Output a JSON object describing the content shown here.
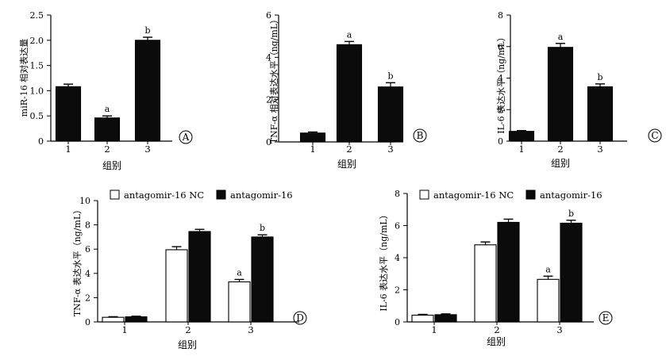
{
  "colors": {
    "bar_dark": "#0b0b0b",
    "bar_light": "#ffffff",
    "axis": "#000000"
  },
  "chart_data": [
    {
      "panel": "A",
      "type": "bar",
      "categories": [
        "1",
        "2",
        "3"
      ],
      "xlabel": "组别",
      "ylabel": "miR-16 相对表达量",
      "ylim": [
        0,
        2.5
      ],
      "yticks": [
        "0",
        "0.5",
        "1.0",
        "1.5",
        "2.0",
        "2.5"
      ],
      "series": [
        {
          "values": [
            1.08,
            0.46,
            2.0
          ],
          "errors": [
            0.05,
            0.04,
            0.06
          ],
          "labels": [
            "",
            "a",
            "b"
          ],
          "fill": "dark"
        }
      ]
    },
    {
      "panel": "B",
      "type": "bar",
      "categories": [
        "1",
        "2",
        "3"
      ],
      "xlabel": "组别",
      "ylabel": "TNF-α 相对表达水平（ng/mL）",
      "ylim": [
        0,
        6
      ],
      "yticks": [
        "0",
        "2",
        "4",
        "6"
      ],
      "series": [
        {
          "values": [
            0.42,
            4.6,
            2.6
          ],
          "errors": [
            0.05,
            0.15,
            0.2
          ],
          "labels": [
            "",
            "a",
            "b"
          ],
          "fill": "dark"
        }
      ]
    },
    {
      "panel": "C",
      "type": "bar",
      "categories": [
        "1",
        "2",
        "3"
      ],
      "xlabel": "组别",
      "ylabel": "IL-6 表达水平（ng/mL）",
      "ylim": [
        0,
        8
      ],
      "yticks": [
        "0",
        "2",
        "4",
        "6",
        "8"
      ],
      "series": [
        {
          "values": [
            0.62,
            5.95,
            3.45
          ],
          "errors": [
            0.05,
            0.25,
            0.18
          ],
          "labels": [
            "",
            "a",
            "b"
          ],
          "fill": "dark"
        }
      ]
    },
    {
      "panel": "D",
      "type": "bar",
      "categories": [
        "1",
        "2",
        "3"
      ],
      "xlabel": "组别",
      "ylabel": "TNF-α 表达水平（ng/mL）",
      "ylim": [
        0,
        10
      ],
      "yticks": [
        "0",
        "2",
        "4",
        "6",
        "8",
        "10"
      ],
      "series": [
        {
          "name": "antagomir-16 NC",
          "values": [
            0.38,
            5.95,
            3.3
          ],
          "errors": [
            0.05,
            0.25,
            0.2
          ],
          "labels": [
            "",
            "",
            "a"
          ],
          "fill": "light"
        },
        {
          "name": "antagomir-16",
          "values": [
            0.42,
            7.45,
            7.0
          ],
          "errors": [
            0.05,
            0.18,
            0.18
          ],
          "labels": [
            "",
            "",
            "b"
          ],
          "fill": "dark"
        }
      ]
    },
    {
      "panel": "E",
      "type": "bar",
      "categories": [
        "1",
        "2",
        "3"
      ],
      "xlabel": "组别",
      "ylabel": "IL-6 表达水平（ng/mL）",
      "ylim": [
        0,
        8
      ],
      "yticks": [
        "0",
        "2",
        "4",
        "6",
        "8"
      ],
      "series": [
        {
          "name": "antagomir-16 NC",
          "values": [
            0.42,
            4.8,
            2.65
          ],
          "errors": [
            0.05,
            0.18,
            0.2
          ],
          "labels": [
            "",
            "",
            "a"
          ],
          "fill": "light"
        },
        {
          "name": "antagomir-16",
          "values": [
            0.45,
            6.2,
            6.15
          ],
          "errors": [
            0.05,
            0.2,
            0.18
          ],
          "labels": [
            "",
            "",
            "b"
          ],
          "fill": "dark"
        }
      ]
    }
  ]
}
